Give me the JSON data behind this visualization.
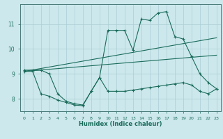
{
  "xlabel": "Humidex (Indice chaleur)",
  "line_color": "#1a6b5a",
  "background_color": "#cce8ec",
  "grid_color": "#aacdd4",
  "xlim": [
    -0.5,
    23.5
  ],
  "ylim": [
    7.5,
    11.8
  ],
  "xticks": [
    0,
    1,
    2,
    3,
    4,
    5,
    6,
    7,
    8,
    9,
    10,
    11,
    12,
    13,
    14,
    15,
    16,
    17,
    18,
    19,
    20,
    21,
    22,
    23
  ],
  "yticks": [
    8,
    9,
    10,
    11
  ],
  "line_top": {
    "x": [
      0,
      1,
      2,
      3,
      4,
      5,
      6,
      7,
      8,
      9,
      10,
      11,
      12,
      13,
      14,
      15,
      16,
      17,
      18,
      19,
      20,
      21,
      22,
      23
    ],
    "y": [
      9.15,
      9.15,
      9.15,
      9.0,
      8.2,
      7.9,
      7.8,
      7.75,
      8.3,
      8.85,
      10.75,
      10.75,
      10.75,
      9.95,
      11.2,
      11.15,
      11.45,
      11.5,
      10.5,
      10.4,
      9.7,
      9.0,
      8.65,
      8.4
    ]
  },
  "line_mid": {
    "x": [
      0,
      23
    ],
    "y": [
      9.1,
      10.45
    ]
  },
  "line_mid2": {
    "x": [
      0,
      23
    ],
    "y": [
      9.1,
      9.75
    ]
  },
  "line_bot": {
    "x": [
      0,
      1,
      2,
      3,
      4,
      5,
      6,
      7,
      8,
      9,
      10,
      11,
      12,
      13,
      14,
      15,
      16,
      17,
      18,
      19,
      20,
      21,
      22,
      23
    ],
    "y": [
      9.1,
      9.1,
      8.2,
      8.1,
      7.95,
      7.85,
      7.75,
      7.72,
      8.3,
      8.85,
      8.3,
      8.3,
      8.3,
      8.35,
      8.4,
      8.45,
      8.5,
      8.55,
      8.6,
      8.65,
      8.55,
      8.3,
      8.2,
      8.4
    ]
  }
}
